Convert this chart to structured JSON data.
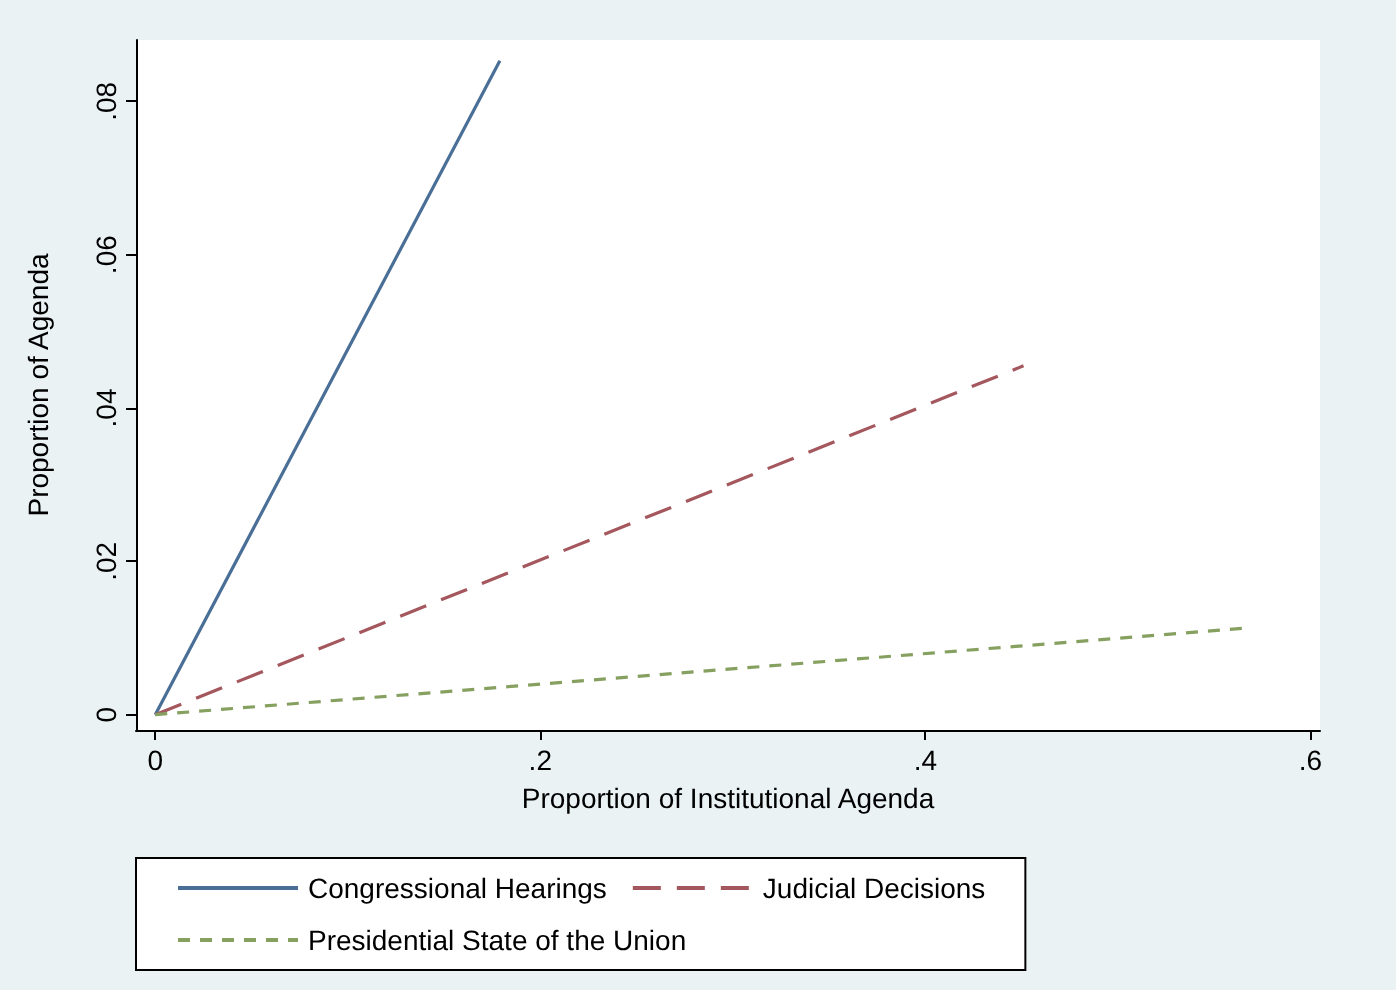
{
  "chart_data": {
    "type": "line",
    "xlabel": "Proportion of Institutional Agenda",
    "ylabel": "Proportion of Agenda",
    "xlim": [
      -0.01,
      0.605
    ],
    "ylim": [
      -0.002,
      0.088
    ],
    "xticks": [
      {
        "value": 0,
        "label": "0"
      },
      {
        "value": 0.2,
        "label": ".2"
      },
      {
        "value": 0.4,
        "label": ".4"
      },
      {
        "value": 0.6,
        "label": ".6"
      }
    ],
    "yticks": [
      {
        "value": 0,
        "label": "0"
      },
      {
        "value": 0.02,
        "label": ".02"
      },
      {
        "value": 0.04,
        "label": ".04"
      },
      {
        "value": 0.06,
        "label": ".06"
      },
      {
        "value": 0.08,
        "label": ".08"
      }
    ],
    "grid": false,
    "legend": "bottom",
    "marker": "none",
    "series": [
      {
        "name": "Congressional Hearings",
        "color": "#4a6f96",
        "line_style": "solid",
        "x": [
          0,
          0.179
        ],
        "values": [
          0,
          0.0853
        ]
      },
      {
        "name": "Judicial Decisions",
        "color": "#a4575d",
        "line_style": "dashed",
        "x": [
          0,
          0.451
        ],
        "values": [
          0,
          0.0455
        ]
      },
      {
        "name": "Presidential State of the Union",
        "color": "#86a060",
        "line_style": "dotted",
        "x": [
          0,
          0.567
        ],
        "values": [
          0,
          0.0113
        ]
      }
    ]
  }
}
